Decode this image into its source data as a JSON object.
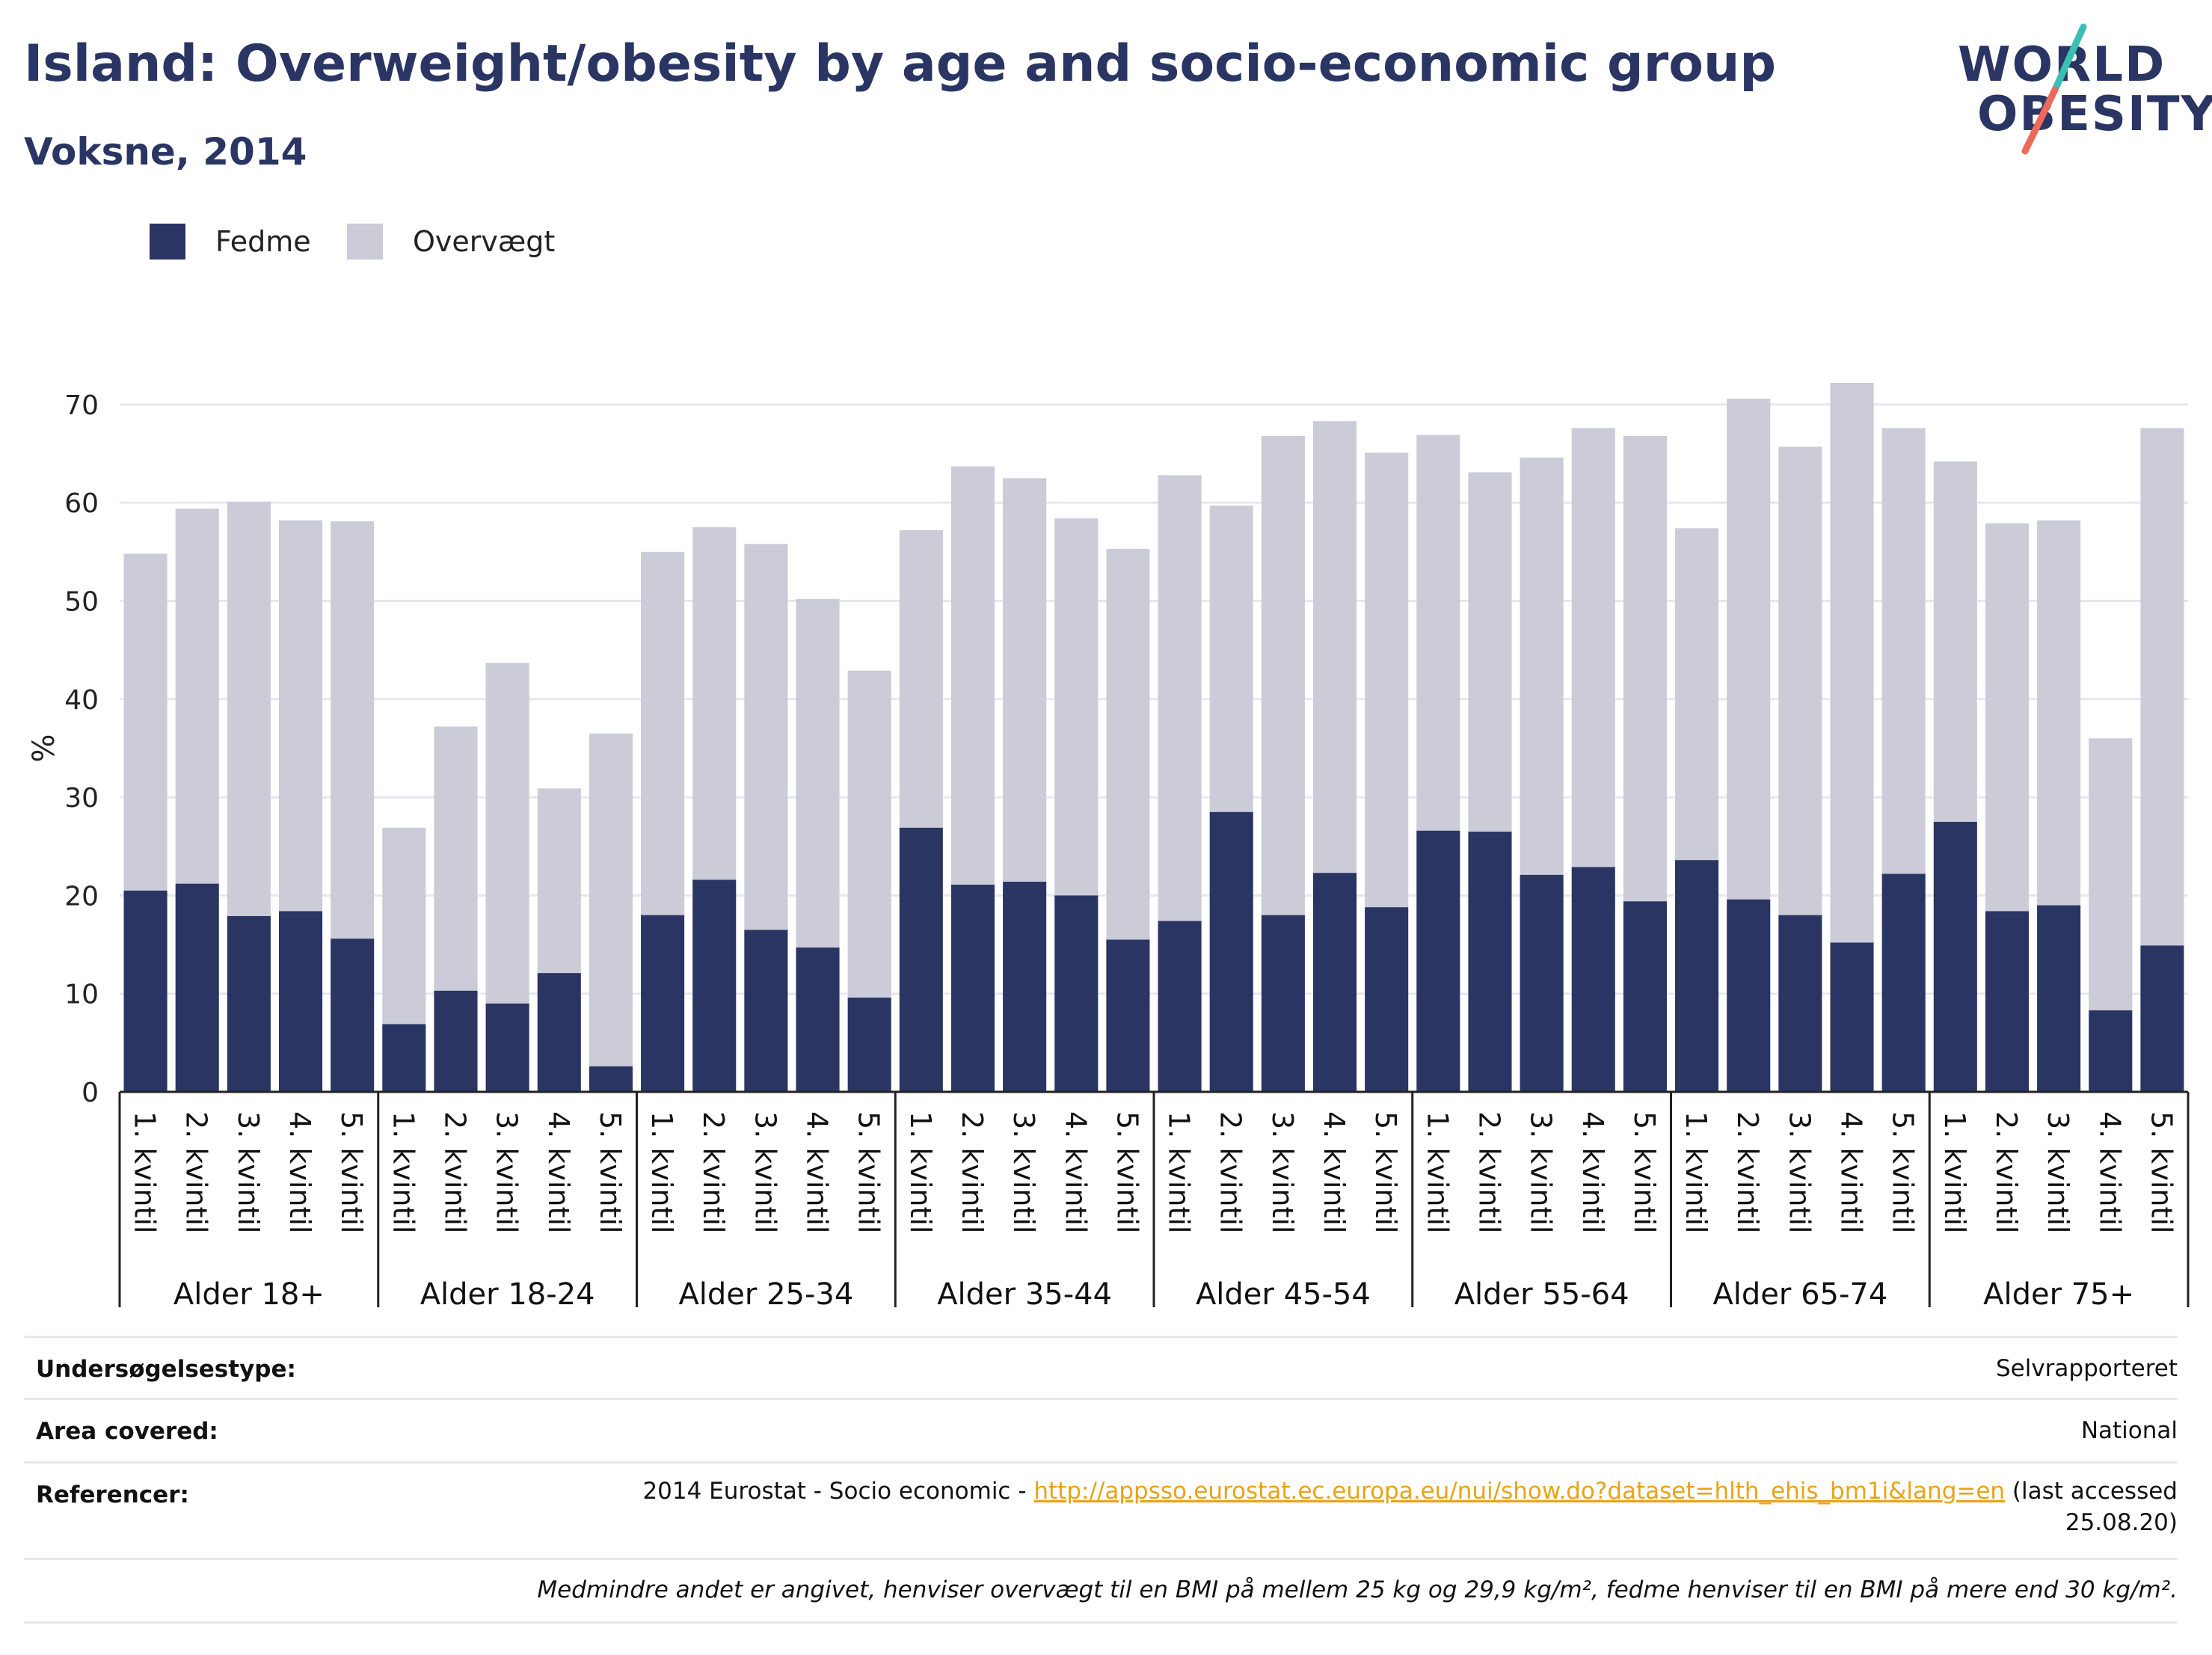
{
  "header": {
    "title": "Island: Overweight/obesity by age and socio-economic group",
    "subtitle": "Voksne, 2014"
  },
  "logo": {
    "line1": "WORLD",
    "line2": "OBESITY",
    "accent_teal": "#3bbfb4",
    "accent_coral": "#ec6a5c"
  },
  "colors": {
    "obesity": "#2a3563",
    "overweight": "#cbccd8",
    "grid": "#e6e8ef"
  },
  "legend": [
    {
      "label": "Fedme",
      "color": "#2a3563"
    },
    {
      "label": "Overvægt",
      "color": "#cbccd8"
    }
  ],
  "chart_data": {
    "type": "bar",
    "stacked": true,
    "ylabel": "%",
    "ylim": [
      0,
      74
    ],
    "yticks": [
      0,
      10,
      20,
      30,
      40,
      50,
      60,
      70
    ],
    "grid": true,
    "legend_position": "top-left",
    "quintiles": [
      "1. kvintil",
      "2. kvintil",
      "3. kvintil",
      "4. kvintil",
      "5. kvintil"
    ],
    "groups": [
      {
        "label": "Alder 18+",
        "fedme": [
          20.5,
          21.2,
          17.9,
          18.4,
          15.6
        ],
        "total": [
          54.8,
          59.4,
          60.1,
          58.2,
          58.1
        ]
      },
      {
        "label": "Alder 18-24",
        "fedme": [
          6.9,
          10.3,
          9.0,
          12.1,
          2.6
        ],
        "total": [
          26.9,
          37.2,
          43.7,
          30.9,
          36.5
        ]
      },
      {
        "label": "Alder 25-34",
        "fedme": [
          18.0,
          21.6,
          16.5,
          14.7,
          9.6
        ],
        "total": [
          55.0,
          57.5,
          55.8,
          50.2,
          42.9
        ]
      },
      {
        "label": "Alder 35-44",
        "fedme": [
          26.9,
          21.1,
          21.4,
          20.0,
          15.5
        ],
        "total": [
          57.2,
          63.7,
          62.5,
          58.4,
          55.3
        ]
      },
      {
        "label": "Alder 45-54",
        "fedme": [
          17.4,
          28.5,
          18.0,
          22.3,
          18.8
        ],
        "total": [
          62.8,
          59.7,
          66.8,
          68.3,
          65.1
        ]
      },
      {
        "label": "Alder 55-64",
        "fedme": [
          26.6,
          26.5,
          22.1,
          22.9,
          19.4
        ],
        "total": [
          66.9,
          63.1,
          64.6,
          67.6,
          66.8
        ]
      },
      {
        "label": "Alder 65-74",
        "fedme": [
          23.6,
          19.6,
          18.0,
          15.2,
          22.2
        ],
        "total": [
          57.4,
          70.6,
          65.7,
          72.2,
          67.6
        ]
      },
      {
        "label": "Alder 75+",
        "fedme": [
          27.5,
          18.4,
          19.0,
          8.3,
          14.9
        ],
        "total": [
          64.2,
          57.9,
          58.2,
          36.0,
          67.6
        ]
      }
    ],
    "series": [
      {
        "name": "Fedme",
        "key": "fedme"
      },
      {
        "name": "Overvægt",
        "key": "overweight"
      }
    ]
  },
  "info": {
    "survey_label": "Undersøgelsestype:",
    "survey_value": "Selvrapporteret",
    "area_label": "Area covered:",
    "area_value": "National",
    "ref_label": "Referencer:",
    "ref_prefix": "2014 Eurostat - Socio economic - ",
    "ref_link": "http://appsso.eurostat.ec.europa.eu/nui/show.do?dataset=hlth_ehis_bm1i&lang=en",
    "ref_suffix_1": " (last accessed",
    "ref_suffix_2": "25.08.20)",
    "note": "Medmindre andet er angivet, henviser overvægt til en BMI på mellem 25 kg og 29,9 kg/m², fedme henviser til en BMI på mere end 30 kg/m²."
  }
}
